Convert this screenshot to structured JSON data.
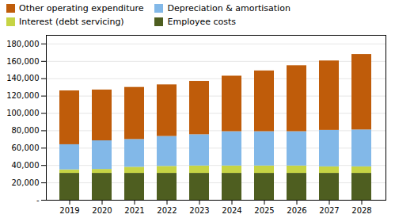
{
  "chart_data": {
    "type": "bar",
    "stacked": true,
    "grid": true,
    "legend": "upper left",
    "categories": [
      "2019",
      "2020",
      "2021",
      "2022",
      "2023",
      "2024",
      "2025",
      "2026",
      "2027",
      "2028"
    ],
    "series": [
      {
        "name": "Employee costs",
        "color": "#4e5e20",
        "values": [
          31000,
          31000,
          31000,
          31000,
          31000,
          31000,
          31000,
          31000,
          31000,
          31000
        ]
      },
      {
        "name": "Interest (debt servicing)",
        "color": "#c6d444",
        "values": [
          4000,
          4500,
          7000,
          8000,
          8500,
          8500,
          8500,
          8500,
          7500,
          7500
        ]
      },
      {
        "name": "Depreciation & amortisation",
        "color": "#82b8e8",
        "values": [
          29000,
          33000,
          32000,
          34500,
          36000,
          39500,
          39500,
          39500,
          42000,
          42500
        ]
      },
      {
        "name": "Other operating expenditure",
        "color": "#bf5c0a",
        "values": [
          62000,
          58500,
          60000,
          59500,
          61500,
          64000,
          70000,
          76000,
          80000,
          87000
        ]
      }
    ],
    "ylim": [
      0,
      190000
    ],
    "yticks": [
      {
        "value": 0,
        "label": "-"
      },
      {
        "value": 20000,
        "label": "20,000"
      },
      {
        "value": 40000,
        "label": "40,000"
      },
      {
        "value": 60000,
        "label": "60,000"
      },
      {
        "value": 80000,
        "label": "80,000"
      },
      {
        "value": 100000,
        "label": "100,000"
      },
      {
        "value": 120000,
        "label": "120,000"
      },
      {
        "value": 140000,
        "label": "140,000"
      },
      {
        "value": 160000,
        "label": "160,000"
      },
      {
        "value": 180000,
        "label": "180,000"
      }
    ]
  }
}
